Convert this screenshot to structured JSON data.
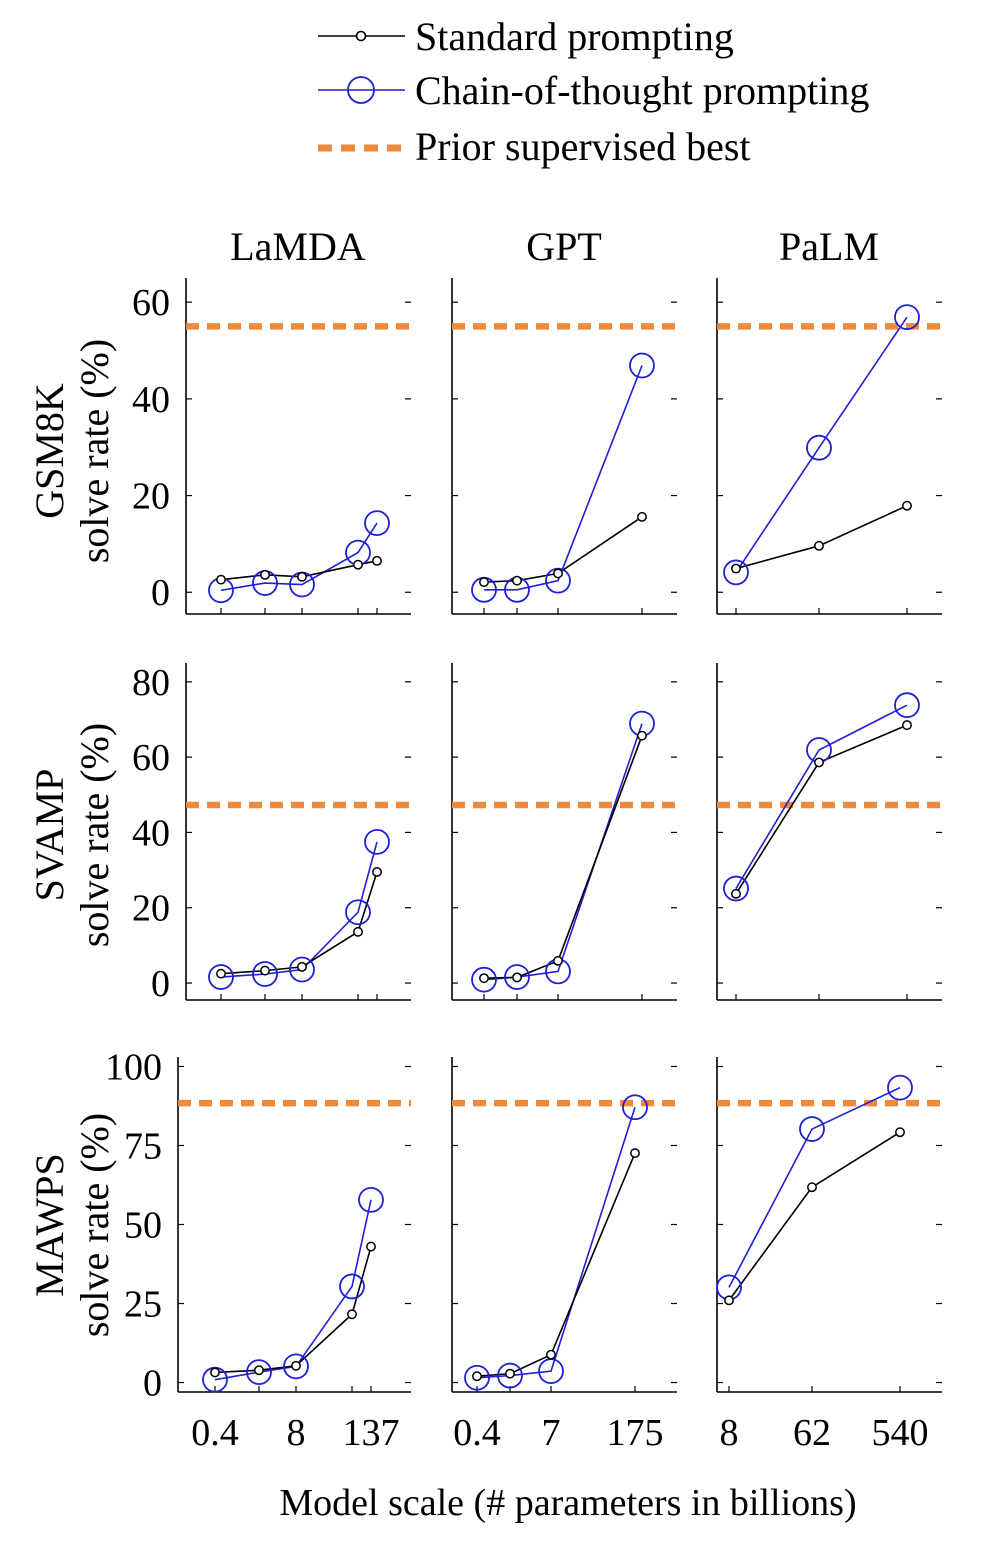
{
  "legend": {
    "standard": "Standard prompting",
    "cot": "Chain-of-thought prompting",
    "prior": "Prior supervised best"
  },
  "colors": {
    "standard": "#000000",
    "cot": "#1f1fd6",
    "prior": "#ee8a3c",
    "axis": "#000000"
  },
  "columns": [
    "LaMDA",
    "GPT",
    "PaLM"
  ],
  "rows": [
    {
      "name": "GSM8K",
      "ylabel": "solve rate (%)"
    },
    {
      "name": "SVAMP",
      "ylabel": "solve rate (%)"
    },
    {
      "name": "MAWPS",
      "ylabel": "solve rate (%)"
    }
  ],
  "x_tick_labels": [
    [
      "0.4",
      "8",
      "137"
    ],
    [
      "0.4",
      "7",
      "175"
    ],
    [
      "8",
      "62",
      "540"
    ]
  ],
  "xlabel": "Model scale (# parameters in billions)",
  "chart_data": [
    {
      "type": "line",
      "dataset": "GSM8K",
      "model": "LaMDA",
      "yticks": [
        0,
        20,
        40,
        60
      ],
      "ylim": [
        -4.5,
        65
      ],
      "x": [
        0.4,
        2,
        8,
        68,
        137
      ],
      "prior": 55,
      "series": [
        {
          "name": "Standard prompting",
          "values": [
            2.6,
            3.6,
            3.2,
            5.7,
            6.5
          ]
        },
        {
          "name": "Chain-of-thought prompting",
          "values": [
            0.4,
            1.9,
            1.6,
            8.2,
            14.3
          ]
        }
      ]
    },
    {
      "type": "line",
      "dataset": "GSM8K",
      "model": "GPT",
      "yticks": [
        0,
        20,
        40,
        60
      ],
      "ylim": [
        -4.5,
        65
      ],
      "x": [
        0.4,
        1.3,
        7,
        175
      ],
      "prior": 55,
      "series": [
        {
          "name": "Standard prompting",
          "values": [
            2.1,
            2.4,
            3.9,
            15.6
          ]
        },
        {
          "name": "Chain-of-thought prompting",
          "values": [
            0.5,
            0.5,
            2.4,
            46.9
          ]
        }
      ]
    },
    {
      "type": "line",
      "dataset": "GSM8K",
      "model": "PaLM",
      "yticks": [
        0,
        20,
        40,
        60
      ],
      "ylim": [
        -4.5,
        65
      ],
      "x": [
        8,
        62,
        540
      ],
      "prior": 55,
      "series": [
        {
          "name": "Standard prompting",
          "values": [
            4.9,
            9.6,
            17.9
          ]
        },
        {
          "name": "Chain-of-thought prompting",
          "values": [
            4.1,
            29.9,
            56.9
          ]
        }
      ]
    },
    {
      "type": "line",
      "dataset": "SVAMP",
      "model": "LaMDA",
      "yticks": [
        0,
        20,
        40,
        60,
        80
      ],
      "ylim": [
        -4.5,
        85
      ],
      "x": [
        0.4,
        2,
        8,
        68,
        137
      ],
      "prior": 47.3,
      "series": [
        {
          "name": "Standard prompting",
          "values": [
            2.5,
            3.3,
            4.3,
            13.6,
            29.5
          ]
        },
        {
          "name": "Chain-of-thought prompting",
          "values": [
            1.6,
            2.4,
            3.6,
            18.8,
            37.5
          ]
        }
      ]
    },
    {
      "type": "line",
      "dataset": "SVAMP",
      "model": "GPT",
      "yticks": [
        0,
        20,
        40,
        60,
        80
      ],
      "ylim": [
        -4.5,
        85
      ],
      "x": [
        0.4,
        1.3,
        7,
        175
      ],
      "prior": 47.3,
      "series": [
        {
          "name": "Standard prompting",
          "values": [
            1.3,
            1.5,
            5.9,
            65.7
          ]
        },
        {
          "name": "Chain-of-thought prompting",
          "values": [
            0.9,
            1.6,
            3.1,
            68.9
          ]
        }
      ]
    },
    {
      "type": "line",
      "dataset": "SVAMP",
      "model": "PaLM",
      "yticks": [
        0,
        20,
        40,
        60,
        80
      ],
      "ylim": [
        -4.5,
        85
      ],
      "x": [
        8,
        62,
        540
      ],
      "prior": 47.3,
      "series": [
        {
          "name": "Standard prompting",
          "values": [
            23.7,
            58.6,
            68.5
          ]
        },
        {
          "name": "Chain-of-thought prompting",
          "values": [
            25.1,
            61.9,
            73.8
          ]
        }
      ]
    },
    {
      "type": "line",
      "dataset": "MAWPS",
      "model": "LaMDA",
      "yticks": [
        0,
        25,
        50,
        75,
        100
      ],
      "ylim": [
        -3,
        103
      ],
      "x": [
        0.4,
        2,
        8,
        68,
        137
      ],
      "prior": 88.4,
      "series": [
        {
          "name": "Standard prompting",
          "values": [
            3.2,
            3.9,
            5.3,
            21.6,
            43.0
          ]
        },
        {
          "name": "Chain-of-thought prompting",
          "values": [
            0.9,
            3.3,
            5.1,
            30.4,
            57.8
          ]
        }
      ]
    },
    {
      "type": "line",
      "dataset": "MAWPS",
      "model": "GPT",
      "yticks": [
        0,
        25,
        50,
        75,
        100
      ],
      "ylim": [
        -3,
        103
      ],
      "x": [
        0.4,
        1.3,
        7,
        175
      ],
      "prior": 88.4,
      "series": [
        {
          "name": "Standard prompting",
          "values": [
            2.0,
            2.8,
            8.8,
            72.6
          ]
        },
        {
          "name": "Chain-of-thought prompting",
          "values": [
            1.5,
            2.2,
            3.6,
            87.1
          ]
        }
      ]
    },
    {
      "type": "line",
      "dataset": "MAWPS",
      "model": "PaLM",
      "yticks": [
        0,
        25,
        50,
        75,
        100
      ],
      "ylim": [
        -3,
        103
      ],
      "x": [
        8,
        62,
        540
      ],
      "prior": 88.4,
      "series": [
        {
          "name": "Standard prompting",
          "values": [
            26.0,
            61.8,
            79.2
          ]
        },
        {
          "name": "Chain-of-thought prompting",
          "values": [
            30.1,
            80.2,
            93.3
          ]
        }
      ]
    }
  ]
}
